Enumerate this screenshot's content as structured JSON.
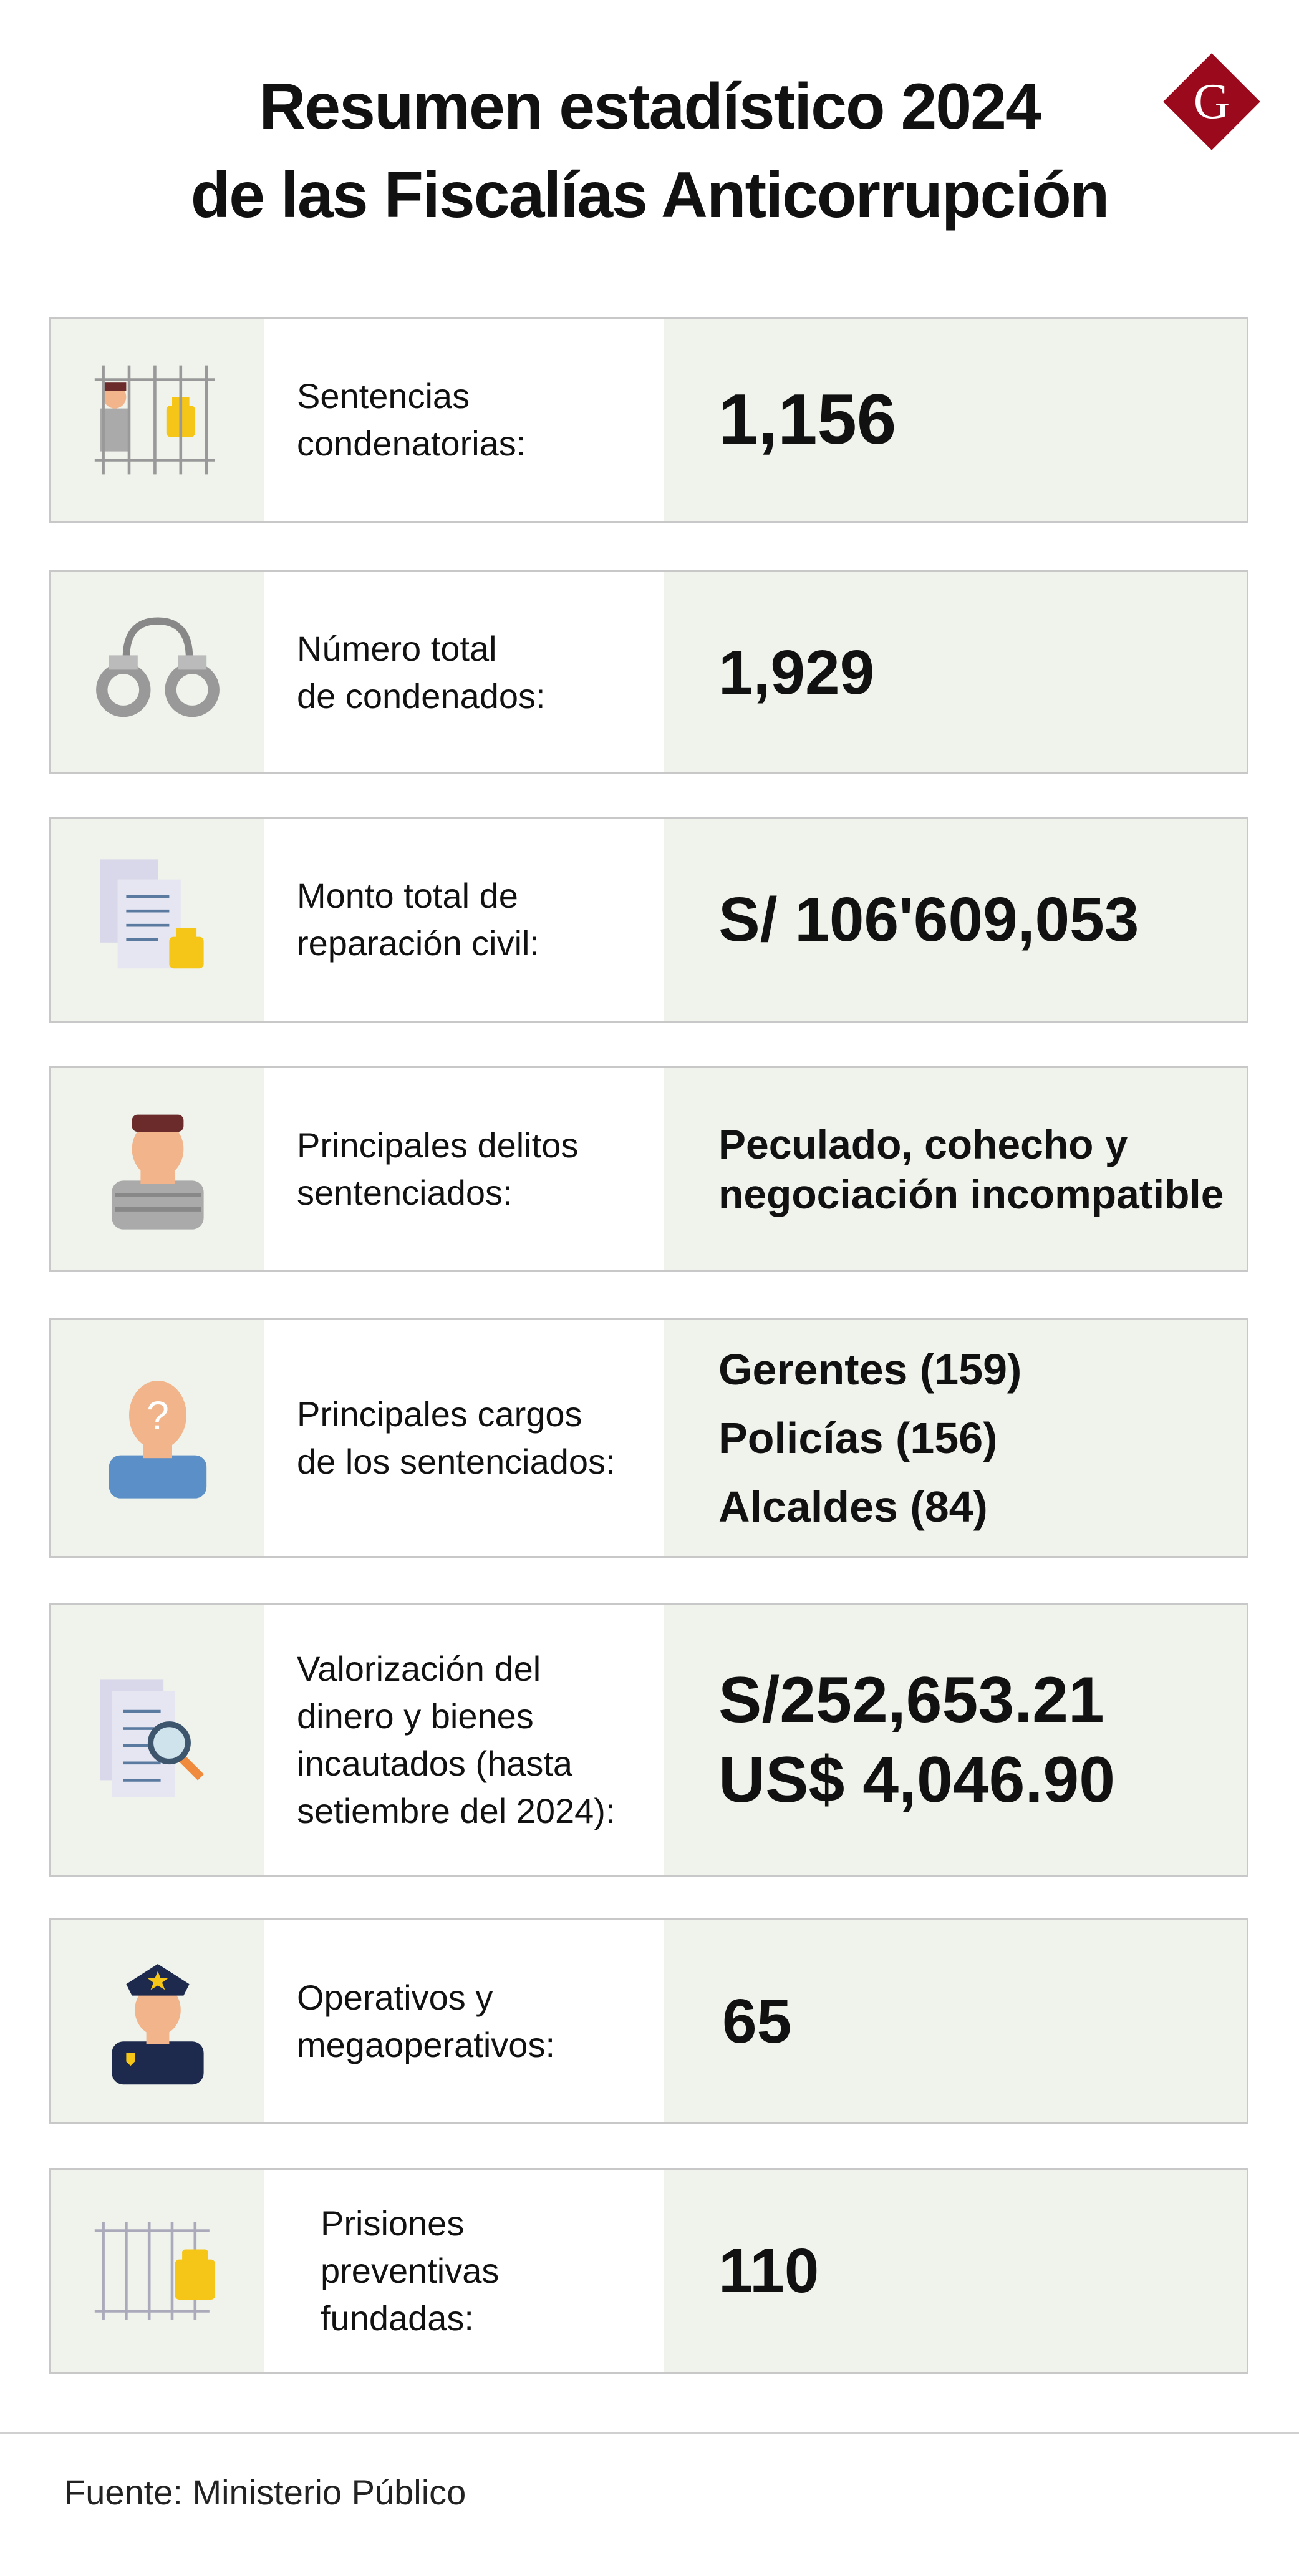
{
  "header": {
    "title_line1": "Resumen estadístico 2024",
    "title_line2": "de las Fiscalías Anticorrupción",
    "logo_letter": "G",
    "logo_color": "#9b0a1c"
  },
  "rows": [
    {
      "icon": "prisoner-behind-bars-icon",
      "label": [
        "Sentencias",
        "condenatorias:"
      ],
      "values": [
        "1,156"
      ]
    },
    {
      "icon": "handcuffs-icon",
      "label": [
        "Número total",
        "de condenados:"
      ],
      "values": [
        "1,929"
      ]
    },
    {
      "icon": "locked-documents-icon",
      "label": [
        "Monto total de",
        "reparación civil:"
      ],
      "values": [
        "S/ 106'609,053"
      ]
    },
    {
      "icon": "prisoner-icon",
      "label": [
        "Principales delitos",
        "sentenciados:"
      ],
      "values": [
        "Peculado, cohecho y",
        "negociación incompatible"
      ]
    },
    {
      "icon": "unknown-person-icon",
      "label": [
        "Principales cargos",
        "de los sentenciados:"
      ],
      "values": [
        "Gerentes (159)",
        "Policías (156)",
        "Alcaldes (84)"
      ]
    },
    {
      "icon": "document-search-icon",
      "label": [
        "Valorización del",
        "dinero y bienes",
        "incautados (hasta",
        "setiembre del 2024):"
      ],
      "values": [
        "S/252,653.21",
        "US$ 4,046.90"
      ]
    },
    {
      "icon": "police-officer-icon",
      "label": [
        "Operativos y",
        "megaoperativos:"
      ],
      "values": [
        "65"
      ]
    },
    {
      "icon": "bars-lock-icon",
      "label": [
        "Prisiones",
        "preventivas",
        "fundadas:"
      ],
      "values": [
        "110"
      ]
    }
  ],
  "footer": {
    "source": "Fuente: Ministerio Público"
  },
  "colors": {
    "panel": "#eff3ec",
    "border": "#c8c8c8",
    "lock": "#f5c518"
  }
}
